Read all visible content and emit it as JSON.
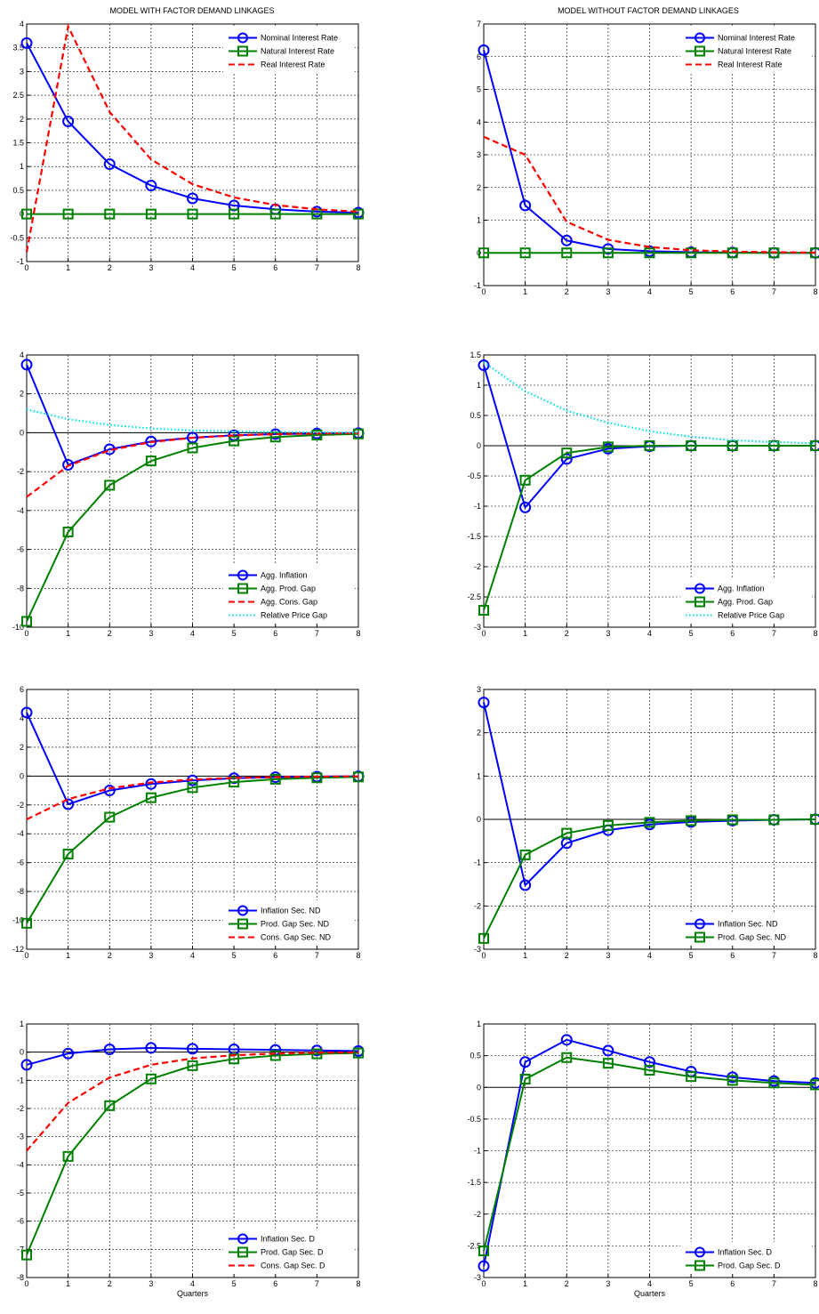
{
  "figure": {
    "left_title": "MODEL WITH FACTOR DEMAND LINKAGES",
    "right_title": "MODEL WITHOUT FACTOR DEMAND LINKAGES"
  },
  "colors": {
    "blue": "#0000ff",
    "green": "#008000",
    "red": "#ff0000",
    "cyan": "#00e5e5"
  },
  "chart_data": [
    {
      "type": "line",
      "title": "MODEL WITH FACTOR DEMAND LINKAGES",
      "xlabel": "",
      "x": [
        0,
        1,
        2,
        3,
        4,
        5,
        6,
        7,
        8
      ],
      "xlim": [
        0,
        8
      ],
      "ylim": [
        -1,
        4
      ],
      "yticks": [
        -1,
        -0.5,
        0,
        0.5,
        1,
        1.5,
        2,
        2.5,
        3,
        3.5,
        4
      ],
      "grid": true,
      "legend": "top-right",
      "series": [
        {
          "name": "Nominal Interest Rate",
          "color": "blue",
          "marker": "circle",
          "dash": "solid",
          "values": [
            3.6,
            1.95,
            1.05,
            0.6,
            0.33,
            0.18,
            0.1,
            0.05,
            0.03
          ]
        },
        {
          "name": "Natural Interest Rate",
          "color": "green",
          "marker": "square",
          "dash": "solid",
          "values": [
            0,
            0,
            0,
            0,
            0,
            0,
            0,
            0,
            0
          ]
        },
        {
          "name": "Real Interest Rate",
          "color": "red",
          "marker": "none",
          "dash": "dashed",
          "values": [
            -0.8,
            3.95,
            2.15,
            1.15,
            0.63,
            0.35,
            0.19,
            0.1,
            0.05
          ]
        }
      ]
    },
    {
      "type": "line",
      "title": "MODEL WITHOUT FACTOR DEMAND LINKAGES",
      "xlabel": "",
      "x": [
        0,
        1,
        2,
        3,
        4,
        5,
        6,
        7,
        8
      ],
      "xlim": [
        0,
        8
      ],
      "ylim": [
        -1,
        7
      ],
      "yticks": [
        -1,
        0,
        1,
        2,
        3,
        4,
        5,
        6,
        7
      ],
      "grid": true,
      "legend": "top-right",
      "series": [
        {
          "name": "Nominal Interest Rate",
          "color": "blue",
          "marker": "circle",
          "dash": "solid",
          "values": [
            6.2,
            1.45,
            0.38,
            0.12,
            0.05,
            0.02,
            0.01,
            0.0,
            0.0
          ]
        },
        {
          "name": "Natural Interest Rate",
          "color": "green",
          "marker": "square",
          "dash": "solid",
          "values": [
            0,
            0,
            0,
            0,
            0,
            0,
            0,
            0,
            0
          ]
        },
        {
          "name": "Real Interest Rate",
          "color": "red",
          "marker": "none",
          "dash": "dashed",
          "values": [
            3.55,
            3.0,
            0.95,
            0.4,
            0.18,
            0.08,
            0.04,
            0.02,
            0.01
          ]
        }
      ]
    },
    {
      "type": "line",
      "title": "",
      "xlabel": "",
      "x": [
        0,
        1,
        2,
        3,
        4,
        5,
        6,
        7,
        8
      ],
      "xlim": [
        0,
        8
      ],
      "ylim": [
        -10,
        4
      ],
      "yticks": [
        -10,
        -8,
        -6,
        -4,
        -2,
        0,
        2,
        4
      ],
      "grid": true,
      "legend": "bottom-right",
      "series": [
        {
          "name": "Agg. Inflation",
          "color": "blue",
          "marker": "circle",
          "dash": "solid",
          "values": [
            3.5,
            -1.65,
            -0.85,
            -0.45,
            -0.25,
            -0.13,
            -0.07,
            -0.04,
            -0.02
          ]
        },
        {
          "name": "Agg. Prod. Gap",
          "color": "green",
          "marker": "square",
          "dash": "solid",
          "values": [
            -9.7,
            -5.1,
            -2.7,
            -1.45,
            -0.78,
            -0.42,
            -0.22,
            -0.12,
            -0.06
          ]
        },
        {
          "name": "Agg. Cons. Gap",
          "color": "red",
          "marker": "none",
          "dash": "dashed",
          "values": [
            -3.3,
            -1.7,
            -0.9,
            -0.48,
            -0.26,
            -0.14,
            -0.07,
            -0.04,
            -0.02
          ]
        },
        {
          "name": "Relative Price Gap",
          "color": "cyan",
          "marker": "none",
          "dash": "dotted",
          "values": [
            1.2,
            0.7,
            0.4,
            0.22,
            0.12,
            0.07,
            0.04,
            0.02,
            0.01
          ]
        }
      ]
    },
    {
      "type": "line",
      "title": "",
      "xlabel": "",
      "x": [
        0,
        1,
        2,
        3,
        4,
        5,
        6,
        7,
        8
      ],
      "xlim": [
        0,
        8
      ],
      "ylim": [
        -3,
        1.5
      ],
      "yticks": [
        -3,
        -2.5,
        -2,
        -1.5,
        -1,
        -0.5,
        0,
        0.5,
        1,
        1.5
      ],
      "grid": true,
      "legend": "bottom-right",
      "series": [
        {
          "name": "Agg. Inflation",
          "color": "blue",
          "marker": "circle",
          "dash": "solid",
          "values": [
            1.33,
            -1.02,
            -0.22,
            -0.05,
            -0.01,
            0,
            0,
            0,
            0
          ]
        },
        {
          "name": "Agg. Prod. Gap",
          "color": "green",
          "marker": "square",
          "dash": "solid",
          "values": [
            -2.72,
            -0.57,
            -0.12,
            -0.02,
            0,
            0,
            0,
            0,
            0
          ]
        },
        {
          "name": "Relative Price Gap",
          "color": "cyan",
          "marker": "none",
          "dash": "dotted",
          "values": [
            1.38,
            0.9,
            0.58,
            0.38,
            0.24,
            0.15,
            0.09,
            0.06,
            0.04
          ]
        }
      ]
    },
    {
      "type": "line",
      "title": "",
      "xlabel": "",
      "x": [
        0,
        1,
        2,
        3,
        4,
        5,
        6,
        7,
        8
      ],
      "xlim": [
        0,
        8
      ],
      "ylim": [
        -12,
        6
      ],
      "yticks": [
        -12,
        -10,
        -8,
        -6,
        -4,
        -2,
        0,
        2,
        4,
        6
      ],
      "grid": true,
      "legend": "bottom-right",
      "series": [
        {
          "name": "Inflation  Sec. ND",
          "color": "blue",
          "marker": "circle",
          "dash": "solid",
          "values": [
            4.4,
            -1.95,
            -1.0,
            -0.55,
            -0.3,
            -0.15,
            -0.08,
            -0.04,
            -0.02
          ]
        },
        {
          "name": "Prod. Gap Sec. ND",
          "color": "green",
          "marker": "square",
          "dash": "solid",
          "values": [
            -10.2,
            -5.4,
            -2.85,
            -1.5,
            -0.8,
            -0.42,
            -0.22,
            -0.12,
            -0.06
          ]
        },
        {
          "name": "Cons. Gap Sec. ND",
          "color": "red",
          "marker": "none",
          "dash": "dashed",
          "values": [
            -3.0,
            -1.6,
            -0.85,
            -0.45,
            -0.24,
            -0.13,
            -0.07,
            -0.04,
            -0.02
          ]
        }
      ]
    },
    {
      "type": "line",
      "title": "",
      "xlabel": "",
      "x": [
        0,
        1,
        2,
        3,
        4,
        5,
        6,
        7,
        8
      ],
      "xlim": [
        0,
        8
      ],
      "ylim": [
        -3,
        3
      ],
      "yticks": [
        -3,
        -2,
        -1,
        0,
        1,
        2,
        3
      ],
      "grid": true,
      "legend": "bottom-right",
      "series": [
        {
          "name": "Inflation  Sec. ND",
          "color": "blue",
          "marker": "circle",
          "dash": "solid",
          "values": [
            2.7,
            -1.52,
            -0.55,
            -0.25,
            -0.12,
            -0.06,
            -0.03,
            -0.01,
            0
          ]
        },
        {
          "name": "Prod. Gap Sec. ND",
          "color": "green",
          "marker": "square",
          "dash": "solid",
          "values": [
            -2.75,
            -0.82,
            -0.32,
            -0.14,
            -0.07,
            -0.03,
            -0.01,
            -0.01,
            0
          ]
        }
      ]
    },
    {
      "type": "line",
      "title": "",
      "xlabel": "Quarters",
      "x": [
        0,
        1,
        2,
        3,
        4,
        5,
        6,
        7,
        8
      ],
      "xlim": [
        0,
        8
      ],
      "ylim": [
        -8,
        1
      ],
      "yticks": [
        -8,
        -7,
        -6,
        -5,
        -4,
        -3,
        -2,
        -1,
        0,
        1
      ],
      "grid": true,
      "legend": "bottom-right",
      "series": [
        {
          "name": "Inflation  Sec. D",
          "color": "blue",
          "marker": "circle",
          "dash": "solid",
          "values": [
            -0.45,
            -0.05,
            0.1,
            0.15,
            0.12,
            0.1,
            0.08,
            0.06,
            0.04
          ]
        },
        {
          "name": "Prod. Gap Sec. D",
          "color": "green",
          "marker": "square",
          "dash": "solid",
          "values": [
            -7.2,
            -3.7,
            -1.9,
            -0.95,
            -0.48,
            -0.24,
            -0.12,
            -0.06,
            -0.03
          ]
        },
        {
          "name": "Cons. Gap Sec. D",
          "color": "red",
          "marker": "none",
          "dash": "dashed",
          "values": [
            -3.5,
            -1.8,
            -0.9,
            -0.45,
            -0.22,
            -0.11,
            -0.05,
            -0.02,
            -0.01
          ]
        }
      ]
    },
    {
      "type": "line",
      "title": "",
      "xlabel": "Quarters",
      "x": [
        0,
        1,
        2,
        3,
        4,
        5,
        6,
        7,
        8
      ],
      "xlim": [
        0,
        8
      ],
      "ylim": [
        -3,
        1
      ],
      "yticks": [
        -3,
        -2.5,
        -2,
        -1.5,
        -1,
        -0.5,
        0,
        0.5,
        1
      ],
      "grid": true,
      "legend": "bottom-right",
      "series": [
        {
          "name": "Inflation  Sec. D",
          "color": "blue",
          "marker": "circle",
          "dash": "solid",
          "values": [
            -2.82,
            0.4,
            0.75,
            0.58,
            0.4,
            0.25,
            0.16,
            0.1,
            0.07
          ]
        },
        {
          "name": "Prod. Gap Sec. D",
          "color": "green",
          "marker": "square",
          "dash": "solid",
          "values": [
            -2.58,
            0.13,
            0.47,
            0.38,
            0.27,
            0.17,
            0.11,
            0.07,
            0.04
          ]
        }
      ]
    }
  ]
}
